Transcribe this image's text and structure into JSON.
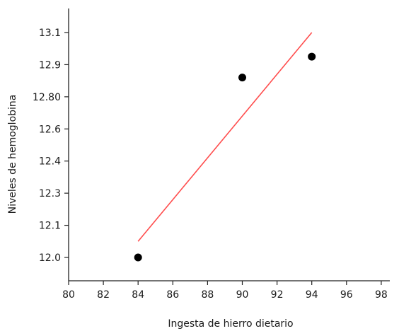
{
  "chart_data": {
    "type": "scatter",
    "title": "",
    "xlabel": "Ingesta de hierro dietario",
    "ylabel": "Niveles de hemoglobina",
    "xlim": [
      80,
      99
    ],
    "x_ticks": [
      80,
      82,
      84,
      86,
      88,
      90,
      92,
      94,
      96,
      98
    ],
    "y_ticks": [
      {
        "value": 12.0,
        "label": "12.0"
      },
      {
        "value": 12.1,
        "label": "12.1"
      },
      {
        "value": 12.3,
        "label": "12.3"
      },
      {
        "value": 12.4,
        "label": "12.4"
      },
      {
        "value": 12.6,
        "label": "12.6"
      },
      {
        "value": 12.8,
        "label": "12.80"
      },
      {
        "value": 12.9,
        "label": "12.9"
      },
      {
        "value": 13.1,
        "label": "13.1"
      }
    ],
    "grid": false,
    "series": [
      {
        "points": [
          {
            "x": 84,
            "y": 12.0
          },
          {
            "x": 90,
            "y": 12.86
          },
          {
            "x": 94,
            "y": 12.95
          }
        ],
        "color": "#000000"
      }
    ],
    "trendline": {
      "points": [
        {
          "x": 84,
          "y": 12.05
        },
        {
          "x": 94,
          "y": 13.1
        }
      ],
      "color": "#ff4d4d"
    }
  }
}
